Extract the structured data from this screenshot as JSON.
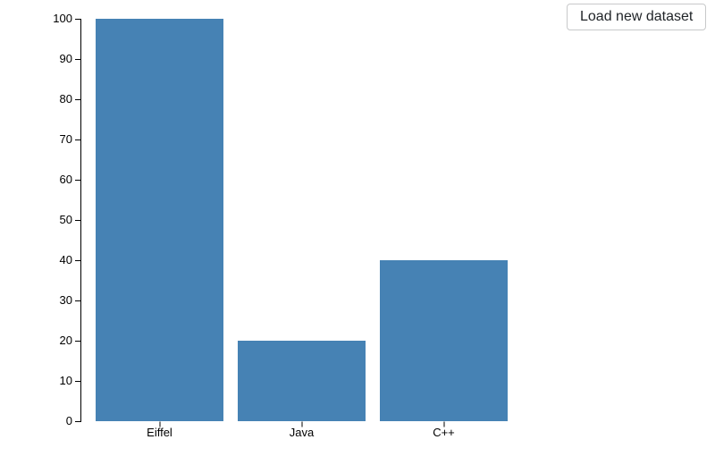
{
  "controls": {
    "load_button_label": "Load new dataset"
  },
  "chart_data": {
    "type": "bar",
    "categories": [
      "Eiffel",
      "Java",
      "C++"
    ],
    "values": [
      100,
      20,
      40
    ],
    "title": "",
    "xlabel": "",
    "ylabel": "",
    "ylim": [
      0,
      100
    ],
    "ytick_step": 10,
    "ytick_labels": [
      "0",
      "10",
      "20",
      "30",
      "40",
      "50",
      "60",
      "70",
      "80",
      "90",
      "100"
    ],
    "bar_color": "#4682b4",
    "axis_color": "#000000",
    "text_color": "#000000",
    "grid": false,
    "legend_position": "none"
  }
}
